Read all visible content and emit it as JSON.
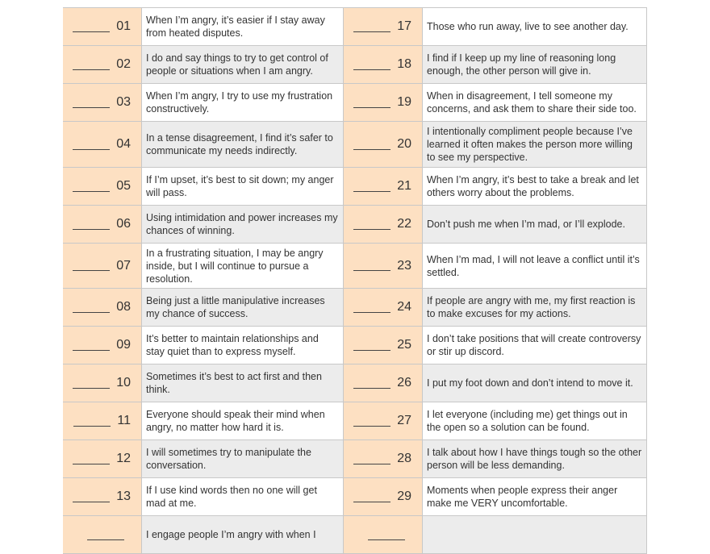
{
  "colors": {
    "number_cell": "#fde0c2",
    "alt_row": "#ececec"
  },
  "rows": [
    {
      "left": {
        "num": "01",
        "text": "When I’m angry, it’s easier if I stay away from heated disputes."
      },
      "right": {
        "num": "17",
        "text": "Those who run away, live to see another day."
      },
      "h": 47
    },
    {
      "left": {
        "num": "02",
        "text": "I do and say things to try to get control of people or situations when I am angry."
      },
      "right": {
        "num": "18",
        "text": "I find if I keep up my line of reasoning long enough, the other person will give in."
      },
      "h": 47
    },
    {
      "left": {
        "num": "03",
        "text": "When I’m angry, I try to use my frustration constructively."
      },
      "right": {
        "num": "19",
        "text": "When in disagreement, I tell someone my concerns, and ask them to share their side too."
      },
      "h": 47
    },
    {
      "left": {
        "num": "04",
        "text": "In a tense disagreement, I find it’s safer to communicate my needs indirectly."
      },
      "right": {
        "num": "20",
        "text": "I intentionally compliment people because I’ve learned it often makes the person more willing to see my perspective."
      },
      "h": 57
    },
    {
      "left": {
        "num": "05",
        "text": "If I’m upset, it’s best to sit down; my anger will pass."
      },
      "right": {
        "num": "21",
        "text": "When I’m angry, it’s best to take a break and let others worry about the problems."
      },
      "h": 47
    },
    {
      "left": {
        "num": "06",
        "text": "Using intimidation and power increases my chances of winning."
      },
      "right": {
        "num": "22",
        "text": "Don’t push me when I’m mad, or I’ll explode."
      },
      "h": 47
    },
    {
      "left": {
        "num": "07",
        "text": "In a frustrating situation, I may be angry inside, but I will continue to pursue a resolution."
      },
      "right": {
        "num": "23",
        "text": "When I’m mad, I will not leave a conflict until it’s settled."
      },
      "h": 56
    },
    {
      "left": {
        "num": "08",
        "text": "Being just a little manipulative increases my chance of success."
      },
      "right": {
        "num": "24",
        "text": "If people are angry with me, my first reaction is to make excuses for my actions."
      },
      "h": 47
    },
    {
      "left": {
        "num": "09",
        "text": "It’s better to maintain relationships and stay quiet than to express myself."
      },
      "right": {
        "num": "25",
        "text": "I don’t take positions that will create controversy or stir up discord."
      },
      "h": 47
    },
    {
      "left": {
        "num": "10",
        "text": "Sometimes it’s best to act first and then think."
      },
      "right": {
        "num": "26",
        "text": "I put my foot down and don’t intend to move it."
      },
      "h": 47
    },
    {
      "left": {
        "num": "11",
        "text": "Everyone should speak their mind when angry, no matter how hard it is."
      },
      "right": {
        "num": "27",
        "text": "I let everyone (including me) get things out in the open so a solution can be found."
      },
      "h": 47
    },
    {
      "left": {
        "num": "12",
        "text": "I will sometimes try to manipulate the conversation."
      },
      "right": {
        "num": "28",
        "text": "I talk about how I have things tough so the other person will be less demanding."
      },
      "h": 47
    },
    {
      "left": {
        "num": "13",
        "text": "If I use kind words then no one will get mad at me."
      },
      "right": {
        "num": "29",
        "text": "Moments when people express their anger make me VERY uncomfortable."
      },
      "h": 47
    },
    {
      "left": {
        "num": "",
        "text": "I engage people I’m angry with when I"
      },
      "right": {
        "num": "",
        "text": ""
      },
      "h": 47
    }
  ]
}
